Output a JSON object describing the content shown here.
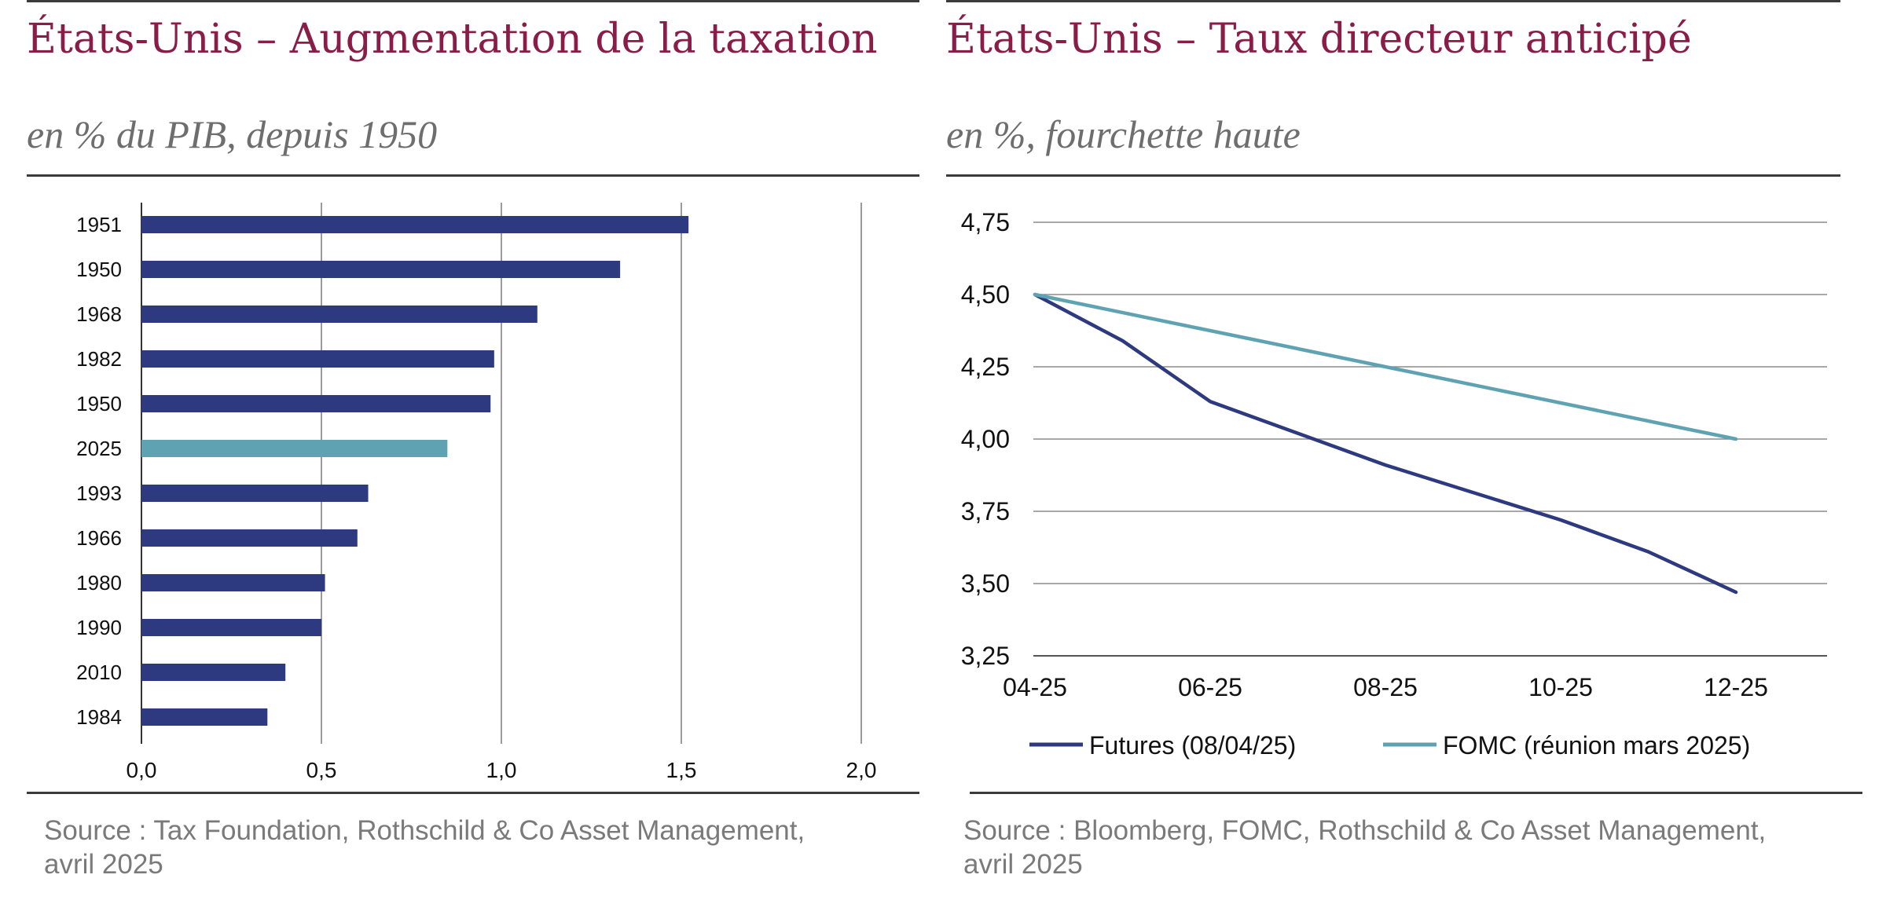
{
  "chart_data": [
    {
      "type": "bar",
      "orientation": "horizontal",
      "title": "États-Unis – Augmentation de la taxation",
      "subtitle": "en % du PIB, depuis 1950",
      "categories": [
        "1951",
        "1950",
        "1968",
        "1982",
        "1950",
        "2025",
        "1993",
        "1966",
        "1980",
        "1990",
        "2010",
        "1984"
      ],
      "values": [
        1.52,
        1.33,
        1.1,
        0.98,
        0.97,
        0.85,
        0.63,
        0.6,
        0.51,
        0.5,
        0.4,
        0.35
      ],
      "highlight_category": "2025",
      "xlim": [
        0,
        2.0
      ],
      "x_ticks": [
        "0,0",
        "0,5",
        "1,0",
        "1,5",
        "2,0"
      ],
      "grid": "vertical",
      "colors": {
        "bar": "#2e3a80",
        "highlight": "#5fa3b2",
        "grid": "#7a7a7a"
      },
      "source_lines": [
        "Source : Tax Foundation, Rothschild & Co Asset Management,",
        "avril 2025"
      ]
    },
    {
      "type": "line",
      "title": "États-Unis – Taux directeur anticipé",
      "subtitle": "en %, fourchette haute",
      "x": [
        "04-25",
        "05-25",
        "06-25",
        "07-25",
        "08-25",
        "09-25",
        "10-25",
        "11-25",
        "12-25"
      ],
      "x_ticks": [
        "04-25",
        "06-25",
        "08-25",
        "10-25",
        "12-25"
      ],
      "ylim": [
        3.25,
        4.75
      ],
      "y_ticks": [
        "4,75",
        "4,50",
        "4,25",
        "4,00",
        "3,75",
        "3,50",
        "3,25"
      ],
      "grid": "horizontal",
      "legend_position": "bottom",
      "series": [
        {
          "name": "Futures (08/04/25)",
          "color": "#2e3a80",
          "values": [
            4.5,
            4.34,
            4.13,
            null,
            3.91,
            null,
            3.72,
            3.61,
            3.47
          ]
        },
        {
          "name": "FOMC (réunion mars 2025)",
          "color": "#5fa3b2",
          "values": [
            4.5,
            null,
            null,
            null,
            null,
            null,
            null,
            null,
            4.0
          ]
        }
      ],
      "source_lines": [
        "Source : Bloomberg, FOMC, Rothschild & Co Asset Management,",
        "avril 2025"
      ]
    }
  ]
}
